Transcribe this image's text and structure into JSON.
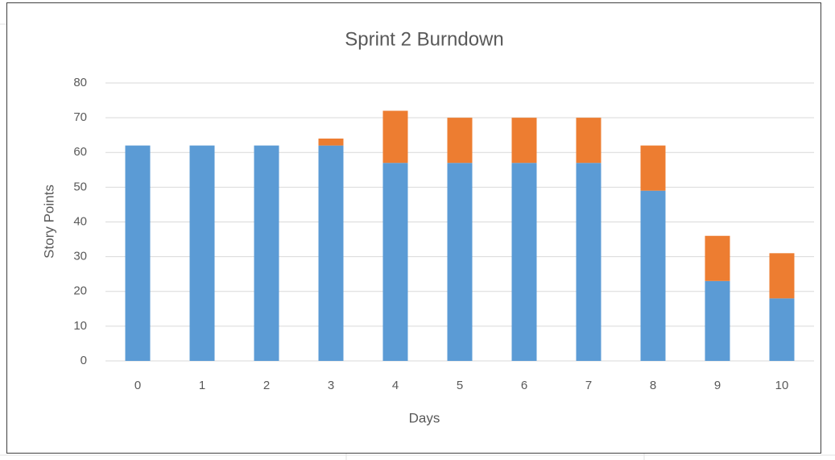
{
  "chart_data": {
    "type": "stacked_bar",
    "title": "Sprint 2 Burndown",
    "x_label": "Days",
    "y_label": "Story Points",
    "categories": [
      "0",
      "1",
      "2",
      "3",
      "4",
      "5",
      "6",
      "7",
      "8",
      "9",
      "10"
    ],
    "series": [
      {
        "color": "#5b9bd5",
        "values": [
          62,
          62,
          62,
          62,
          57,
          57,
          57,
          57,
          49,
          23,
          18
        ]
      },
      {
        "color": "#ed7d31",
        "values": [
          0,
          0,
          0,
          2,
          15,
          13,
          13,
          13,
          13,
          13,
          13
        ]
      }
    ],
    "ylim": [
      0,
      80
    ],
    "yticks": [
      0,
      10,
      20,
      30,
      40,
      50,
      60,
      70,
      80
    ],
    "grid": true
  }
}
